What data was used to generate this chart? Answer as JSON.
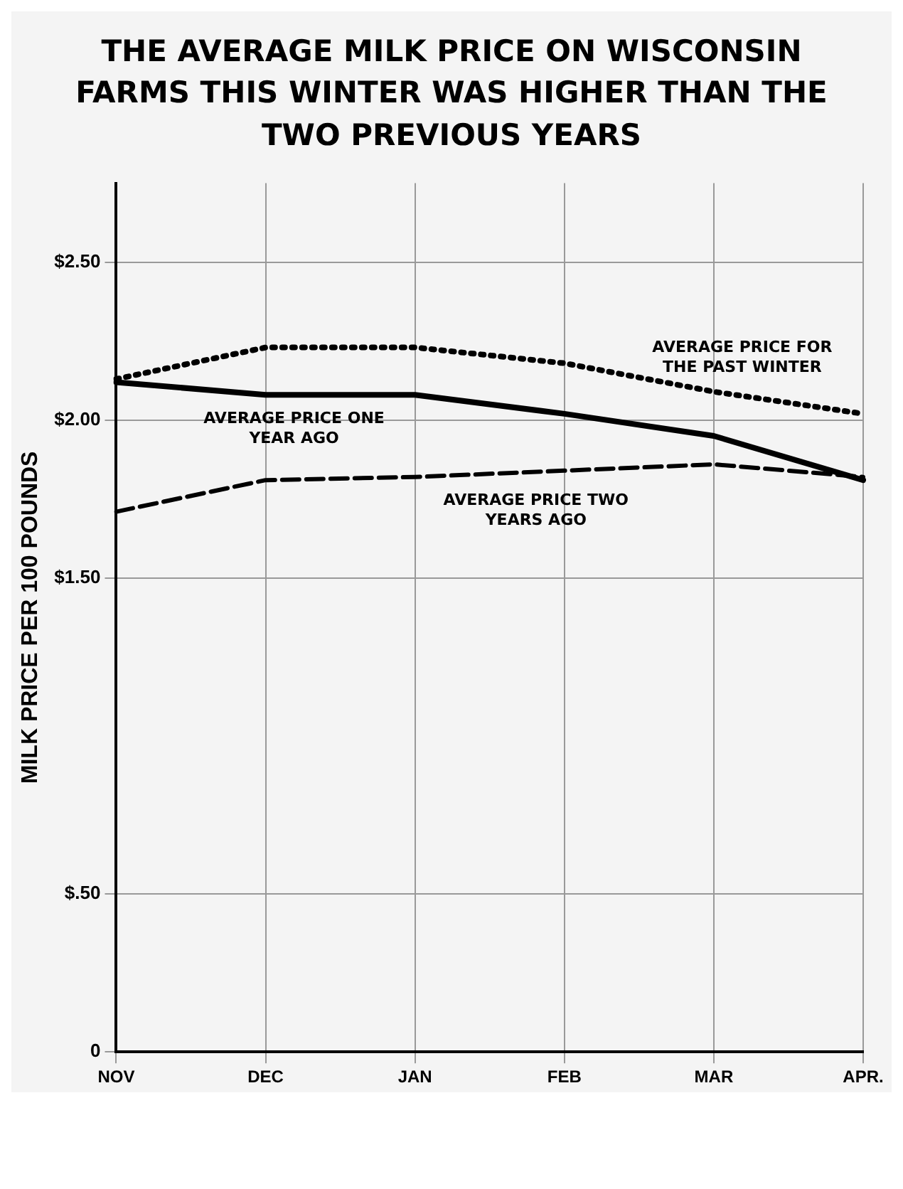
{
  "chart_data": {
    "type": "line",
    "title": "THE AVERAGE MILK PRICE ON WISCONSIN FARMS THIS WINTER WAS HIGHER THAN THE TWO PREVIOUS YEARS",
    "ylabel": "MILK PRICE PER 100 POUNDS",
    "categories": [
      "NOV",
      "DEC",
      "JAN",
      "FEB",
      "MAR",
      "APR."
    ],
    "series": [
      {
        "name": "AVERAGE PRICE FOR THE PAST WINTER",
        "color": "#000000",
        "line_style": "dotted",
        "values": [
          2.13,
          2.23,
          2.23,
          2.18,
          2.09,
          2.02
        ]
      },
      {
        "name": "AVERAGE PRICE ONE YEAR AGO",
        "color": "#000000",
        "line_style": "solid",
        "values": [
          2.12,
          2.08,
          2.08,
          2.02,
          1.95,
          1.81
        ]
      },
      {
        "name": "AVERAGE PRICE TWO YEARS AGO",
        "color": "#000000",
        "line_style": "dashed",
        "values": [
          1.71,
          1.81,
          1.82,
          1.84,
          1.86,
          1.82
        ]
      }
    ],
    "ylim": [
      0,
      2.75
    ],
    "yticks": [
      0,
      {
        "value": 0.5,
        "label": "$.50"
      },
      {
        "value": 1.5,
        "label": "$1.50"
      },
      {
        "value": 2,
        "label": "$2.00"
      },
      {
        "value": 2.5,
        "label": "$2.50"
      }
    ],
    "grid": true,
    "legend": false,
    "marker": "none"
  }
}
